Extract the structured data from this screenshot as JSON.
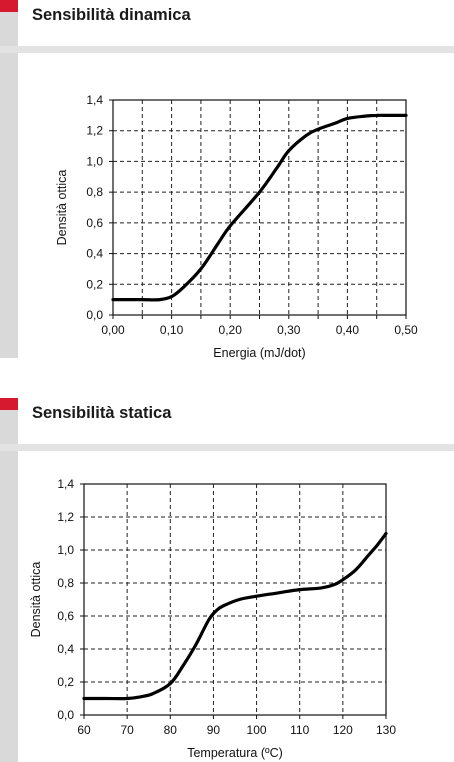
{
  "accent_color": "#d7192f",
  "sections": [
    {
      "title": "Sensibilità dinamica"
    },
    {
      "title": "Sensibilità statica"
    }
  ],
  "chart_data": [
    {
      "type": "line",
      "title": "Sensibilità dinamica",
      "xlabel": "Energia (mJ/dot)",
      "ylabel": "Densità ottica",
      "xlim": [
        0,
        0.5
      ],
      "ylim": [
        0,
        1.4
      ],
      "grid": true,
      "x_ticks": [
        0,
        0.05,
        0.1,
        0.15,
        0.2,
        0.25,
        0.3,
        0.35,
        0.4,
        0.45,
        0.5
      ],
      "x_tick_labels": [
        "0,00",
        "",
        "0,10",
        "",
        "0,20",
        "",
        "0,30",
        "",
        "0,40",
        "",
        "0,50"
      ],
      "y_ticks": [
        0,
        0.2,
        0.4,
        0.6,
        0.8,
        1.0,
        1.2,
        1.4
      ],
      "y_tick_labels": [
        "0,0",
        "0,2",
        "0,4",
        "0,6",
        "0,8",
        "1,0",
        "1,2",
        "1,4"
      ],
      "series": [
        {
          "x": [
            0.0,
            0.02,
            0.05,
            0.08,
            0.1,
            0.12,
            0.15,
            0.18,
            0.2,
            0.25,
            0.28,
            0.3,
            0.33,
            0.35,
            0.38,
            0.4,
            0.43,
            0.45,
            0.47,
            0.5
          ],
          "y": [
            0.1,
            0.1,
            0.1,
            0.1,
            0.12,
            0.18,
            0.3,
            0.47,
            0.58,
            0.8,
            0.96,
            1.07,
            1.17,
            1.21,
            1.25,
            1.28,
            1.295,
            1.3,
            1.3,
            1.3
          ]
        }
      ]
    },
    {
      "type": "line",
      "title": "Sensibilità statica",
      "xlabel": "Temperatura (ºC)",
      "ylabel": "Densità ottica",
      "xlim": [
        60,
        130
      ],
      "ylim": [
        0,
        1.4
      ],
      "grid": true,
      "x_ticks": [
        60,
        70,
        80,
        90,
        100,
        110,
        120,
        130
      ],
      "x_tick_labels": [
        "60",
        "70",
        "80",
        "90",
        "100",
        "110",
        "120",
        "130"
      ],
      "y_ticks": [
        0,
        0.2,
        0.4,
        0.6,
        0.8,
        1.0,
        1.2,
        1.4
      ],
      "y_tick_labels": [
        "0,0",
        "0,2",
        "0,4",
        "0,6",
        "0,8",
        "1,0",
        "1,2",
        "1,4"
      ],
      "series": [
        {
          "x": [
            60,
            65,
            70,
            73,
            76,
            80,
            83,
            86,
            89,
            91,
            93,
            96,
            100,
            105,
            110,
            115,
            118,
            120,
            123,
            126,
            128,
            130
          ],
          "y": [
            0.1,
            0.1,
            0.1,
            0.11,
            0.13,
            0.19,
            0.3,
            0.43,
            0.58,
            0.64,
            0.67,
            0.7,
            0.72,
            0.74,
            0.76,
            0.77,
            0.79,
            0.82,
            0.88,
            0.97,
            1.03,
            1.1
          ]
        }
      ]
    }
  ]
}
